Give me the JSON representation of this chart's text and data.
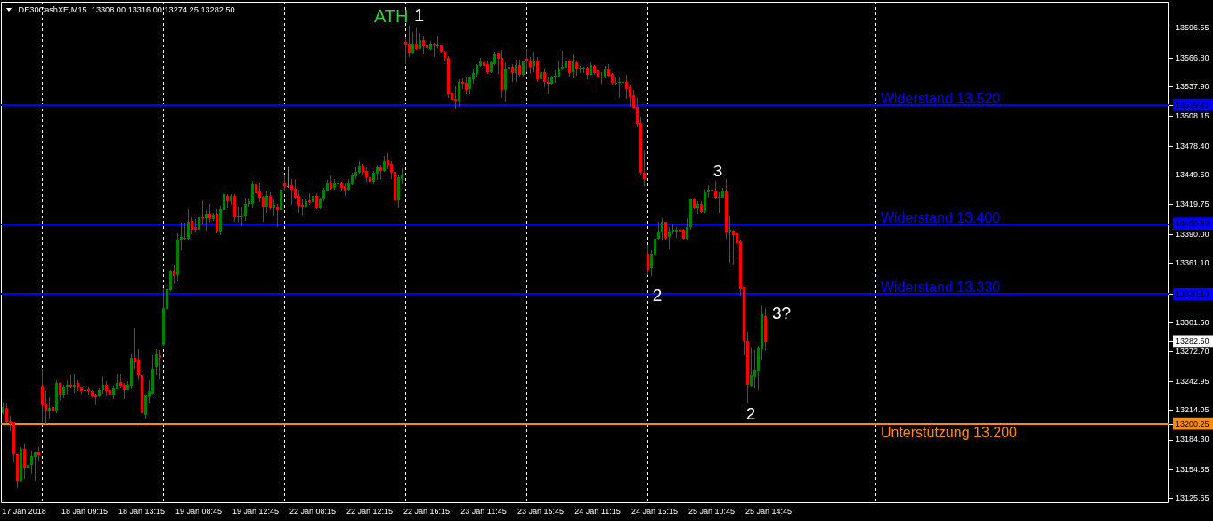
{
  "chart_data": {
    "type": "candlestick",
    "title": ".DE30CashXE,M15  13308.00 13316.00 13274.25 13282.50",
    "categories": [
      null,
      null,
      null,
      null,
      null,
      null,
      "17 Jan 2018",
      null,
      null,
      null,
      null,
      null,
      null,
      null,
      null,
      null,
      null,
      null,
      null,
      null,
      null,
      null,
      null,
      "18 Jan 09:15",
      null,
      null,
      null,
      null,
      null,
      null,
      null,
      null,
      null,
      null,
      null,
      null,
      null,
      null,
      null,
      "18 Jan 13:15",
      null,
      null,
      null,
      null,
      null,
      null,
      null,
      null,
      null,
      null,
      null,
      null,
      null,
      null,
      null,
      "19 Jan 08:45",
      null,
      null,
      null,
      null,
      null,
      null,
      null,
      null,
      null,
      null,
      null,
      null,
      null,
      null,
      null,
      "19 Jan 12:45",
      null,
      null,
      null,
      null,
      null,
      null,
      null,
      null,
      null,
      null,
      null,
      null,
      null,
      null,
      null,
      "22 Jan 08:15",
      null,
      null,
      null,
      null,
      null,
      null,
      null,
      null,
      null,
      null,
      null,
      null,
      null,
      null,
      null,
      "22 Jan 12:15",
      null,
      null,
      null,
      null,
      null,
      null,
      null,
      null,
      null,
      null,
      null,
      null,
      null,
      null,
      null,
      "22 Jan 16:15",
      null,
      null,
      null,
      null,
      null,
      null,
      null,
      null,
      null,
      null,
      null,
      null,
      null,
      null,
      null,
      "23 Jan 11:45",
      null,
      null,
      null,
      null,
      null,
      null,
      null,
      null,
      null,
      null,
      null,
      null,
      null,
      null,
      null,
      "23 Jan 15:45",
      null,
      null,
      null,
      null,
      null,
      null,
      null,
      null,
      null,
      null,
      null,
      null,
      null,
      null,
      null,
      "24 Jan 11:15",
      null,
      null,
      null,
      null,
      null,
      null,
      null,
      null,
      null,
      null,
      null,
      null,
      null,
      null,
      null,
      "24 Jan 15:15",
      null,
      null,
      null,
      null,
      null,
      null,
      null,
      null,
      null,
      null,
      null,
      null,
      null,
      null,
      null,
      "25 Jan 10:45",
      null,
      null,
      null,
      null,
      null,
      null,
      null,
      null,
      null,
      null,
      null,
      null,
      null,
      null,
      null,
      "25 Jan 14:45",
      null,
      null,
      null,
      null,
      null,
      null,
      null,
      null,
      null,
      null,
      null,
      null,
      null,
      null,
      null,
      null,
      null,
      null,
      null,
      null,
      null,
      null,
      null,
      null,
      null,
      null,
      null,
      null,
      null,
      null,
      null,
      null,
      null,
      null,
      null,
      null,
      null,
      null,
      null,
      null,
      null,
      null,
      null,
      null,
      null,
      null,
      null,
      null,
      null,
      null,
      null,
      null,
      null,
      null,
      null,
      null,
      null,
      null,
      null,
      null,
      null,
      null,
      null,
      null,
      null,
      null,
      null,
      null,
      null,
      null,
      null,
      null,
      null,
      null,
      null,
      null,
      null,
      null,
      null,
      null,
      null,
      null,
      null,
      null,
      null,
      null,
      null,
      null,
      null,
      null,
      null,
      null,
      null,
      null,
      null,
      null,
      null,
      null,
      null,
      null,
      null,
      null,
      null,
      null,
      null,
      null,
      null,
      null,
      null,
      null,
      null,
      null
    ],
    "ohlc": [
      [
        13211,
        13222,
        13210,
        13217
      ],
      [
        13216,
        13221,
        13201,
        13202
      ],
      [
        13203,
        13208,
        13193,
        13200
      ],
      [
        13202,
        13202,
        13162,
        13170
      ],
      [
        13170,
        13170,
        13136,
        13143
      ],
      [
        13143,
        13177,
        13142,
        13175
      ],
      [
        13175,
        13181,
        13145,
        13156
      ],
      [
        13156,
        13173,
        13151,
        13159
      ],
      [
        13159,
        13174,
        13150,
        13168
      ],
      [
        13167,
        13173,
        13143,
        13172
      ],
      [
        13172,
        13177,
        13163,
        13169
      ],
      [
        13239,
        13256,
        13202,
        13219
      ],
      [
        13220,
        13233,
        13200,
        13214
      ],
      [
        13214,
        13227,
        13206,
        13216
      ],
      [
        13217,
        13222,
        13202,
        13214
      ],
      [
        13214,
        13244,
        13211,
        13241
      ],
      [
        13241,
        13242,
        13224,
        13229
      ],
      [
        13229,
        13240,
        13226,
        13238
      ],
      [
        13237,
        13244,
        13230,
        13240
      ],
      [
        13240,
        13249,
        13236,
        13238
      ],
      [
        13237,
        13250,
        13232,
        13240
      ],
      [
        13241,
        13244,
        13233,
        13237
      ],
      [
        13237,
        13238,
        13230,
        13233
      ],
      [
        13233,
        13241,
        13225,
        13234
      ],
      [
        13235,
        13238,
        13230,
        13233
      ],
      [
        13233,
        13234,
        13227,
        13228
      ],
      [
        13229,
        13231,
        13219,
        13227
      ],
      [
        13228,
        13236,
        13227,
        13234
      ],
      [
        13234,
        13248,
        13231,
        13240
      ],
      [
        13240,
        13243,
        13228,
        13233
      ],
      [
        13234,
        13239,
        13221,
        13229
      ],
      [
        13229,
        13239,
        13225,
        13236
      ],
      [
        13235,
        13250,
        13235,
        13241
      ],
      [
        13242,
        13250,
        13236,
        13239
      ],
      [
        13240,
        13241,
        13225,
        13234
      ],
      [
        13234,
        13243,
        13234,
        13240
      ],
      [
        13239,
        13271,
        13235,
        13266
      ],
      [
        13266,
        13297,
        13256,
        13263
      ],
      [
        13265,
        13275,
        13244,
        13249
      ],
      [
        13249,
        13252,
        13202,
        13211
      ],
      [
        13209,
        13230,
        13205,
        13229
      ],
      [
        13227,
        13244,
        13221,
        13233
      ],
      [
        13231,
        13269,
        13230,
        13256
      ],
      [
        13257,
        13275,
        13249,
        13270
      ],
      [
        13269,
        13274,
        13245,
        13266
      ],
      [
        13280,
        13337,
        13279,
        13316
      ],
      [
        13315,
        13345,
        13310,
        13335
      ],
      [
        13334,
        13355,
        13333,
        13354
      ],
      [
        13354,
        13360,
        13340,
        13348
      ],
      [
        13349,
        13391,
        13343,
        13385
      ],
      [
        13384,
        13402,
        13374,
        13388
      ],
      [
        13387,
        13402,
        13385,
        13386
      ],
      [
        13386,
        13415,
        13385,
        13403
      ],
      [
        13404,
        13407,
        13390,
        13395
      ],
      [
        13397,
        13405,
        13392,
        13395
      ],
      [
        13395,
        13409,
        13393,
        13407
      ],
      [
        13407,
        13424,
        13400,
        13406
      ],
      [
        13406,
        13414,
        13394,
        13411
      ],
      [
        13411,
        13421,
        13403,
        13406
      ],
      [
        13405,
        13412,
        13404,
        13410
      ],
      [
        13411,
        13415,
        13391,
        13394
      ],
      [
        13393,
        13419,
        13389,
        13415
      ],
      [
        13414,
        13434,
        13411,
        13430
      ],
      [
        13429,
        13430,
        13416,
        13423
      ],
      [
        13423,
        13430,
        13420,
        13429
      ],
      [
        13429,
        13430,
        13403,
        13407
      ],
      [
        13408,
        13418,
        13403,
        13407
      ],
      [
        13407,
        13418,
        13398,
        13409
      ],
      [
        13408,
        13427,
        13404,
        13421
      ],
      [
        13421,
        13426,
        13418,
        13423
      ],
      [
        13421,
        13444,
        13417,
        13440
      ],
      [
        13440,
        13448,
        13426,
        13431
      ],
      [
        13433,
        13442,
        13422,
        13427
      ],
      [
        13428,
        13429,
        13403,
        13418
      ],
      [
        13418,
        13433,
        13412,
        13429
      ],
      [
        13429,
        13432,
        13414,
        13417
      ],
      [
        13417,
        13425,
        13409,
        13420
      ],
      [
        13418,
        13421,
        13397,
        13414
      ],
      [
        13414,
        13440,
        13411,
        13435
      ],
      [
        13441,
        13449,
        13433,
        13438
      ],
      [
        13438,
        13458,
        13437,
        13438
      ],
      [
        13439,
        13446,
        13420,
        13435
      ],
      [
        13436,
        13446,
        13426,
        13427
      ],
      [
        13429,
        13435,
        13412,
        13419
      ],
      [
        13420,
        13426,
        13410,
        13418
      ],
      [
        13418,
        13426,
        13417,
        13423
      ],
      [
        13424,
        13431,
        13420,
        13422
      ],
      [
        13422,
        13441,
        13421,
        13429
      ],
      [
        13429,
        13431,
        13415,
        13416
      ],
      [
        13416,
        13427,
        13415,
        13426
      ],
      [
        13425,
        13437,
        13423,
        13435
      ],
      [
        13434,
        13445,
        13433,
        13441
      ],
      [
        13441,
        13449,
        13435,
        13436
      ],
      [
        13437,
        13446,
        13435,
        13442
      ],
      [
        13440,
        13444,
        13436,
        13442
      ],
      [
        13441,
        13443,
        13433,
        13437
      ],
      [
        13438,
        13441,
        13429,
        13434
      ],
      [
        13435,
        13446,
        13433,
        13441
      ],
      [
        13440,
        13452,
        13439,
        13449
      ],
      [
        13448,
        13458,
        13446,
        13453
      ],
      [
        13452,
        13463,
        13451,
        13459
      ],
      [
        13459,
        13461,
        13450,
        13453
      ],
      [
        13454,
        13457,
        13443,
        13447
      ],
      [
        13447,
        13452,
        13440,
        13443
      ],
      [
        13443,
        13454,
        13440,
        13452
      ],
      [
        13451,
        13460,
        13445,
        13458
      ],
      [
        13458,
        13460,
        13446,
        13454
      ],
      [
        13454,
        13469,
        13453,
        13463
      ],
      [
        13464,
        13471,
        13455,
        13460
      ],
      [
        13461,
        13463,
        13446,
        13452
      ],
      [
        13453,
        13454,
        13420,
        13424
      ],
      [
        13424,
        13450,
        13417,
        13447
      ],
      [
        13446,
        13456,
        13440,
        13450
      ],
      [
        13583,
        13587,
        13561,
        13580
      ],
      [
        13581,
        13599,
        13568,
        13571
      ],
      [
        13571,
        13593,
        13570,
        13581
      ],
      [
        13581,
        13597,
        13575,
        13576
      ],
      [
        13576,
        13592,
        13576,
        13585
      ],
      [
        13585,
        13589,
        13570,
        13578
      ],
      [
        13579,
        13581,
        13570,
        13577
      ],
      [
        13576,
        13584,
        13575,
        13581
      ],
      [
        13581,
        13582,
        13568,
        13579
      ],
      [
        13578,
        13589,
        13577,
        13579
      ],
      [
        13579,
        13579,
        13572,
        13573
      ],
      [
        13573,
        13574,
        13563,
        13567
      ],
      [
        13567,
        13569,
        13527,
        13530
      ],
      [
        13532,
        13541,
        13524,
        13525
      ],
      [
        13526,
        13538,
        13516,
        13524
      ],
      [
        13524,
        13545,
        13518,
        13543
      ],
      [
        13543,
        13546,
        13536,
        13541
      ],
      [
        13542,
        13547,
        13531,
        13535
      ],
      [
        13536,
        13548,
        13531,
        13547
      ],
      [
        13545,
        13556,
        13541,
        13552
      ],
      [
        13551,
        13561,
        13547,
        13560
      ],
      [
        13559,
        13567,
        13558,
        13563
      ],
      [
        13562,
        13568,
        13558,
        13559
      ],
      [
        13561,
        13564,
        13551,
        13553
      ],
      [
        13553,
        13564,
        13552,
        13562
      ],
      [
        13561,
        13573,
        13560,
        13570
      ],
      [
        13571,
        13572,
        13551,
        13566
      ],
      [
        13567,
        13575,
        13527,
        13535
      ],
      [
        13535,
        13562,
        13523,
        13556
      ],
      [
        13556,
        13565,
        13545,
        13558
      ],
      [
        13558,
        13561,
        13543,
        13552
      ],
      [
        13552,
        13565,
        13543,
        13560
      ],
      [
        13560,
        13565,
        13548,
        13550
      ],
      [
        13550,
        13564,
        13548,
        13563
      ],
      [
        13566,
        13576,
        13553,
        13564
      ],
      [
        13564,
        13568,
        13551,
        13558
      ],
      [
        13559,
        13573,
        13553,
        13564
      ],
      [
        13564,
        13568,
        13543,
        13545
      ],
      [
        13545,
        13556,
        13535,
        13553
      ],
      [
        13553,
        13556,
        13537,
        13543
      ],
      [
        13543,
        13547,
        13531,
        13541
      ],
      [
        13541,
        13549,
        13540,
        13547
      ],
      [
        13547,
        13554,
        13542,
        13549
      ],
      [
        13548,
        13564,
        13547,
        13556
      ],
      [
        13555,
        13574,
        13554,
        13558
      ],
      [
        13557,
        13564,
        13555,
        13563
      ],
      [
        13564,
        13564,
        13548,
        13552
      ],
      [
        13553,
        13570,
        13546,
        13563
      ],
      [
        13562,
        13564,
        13549,
        13555
      ],
      [
        13555,
        13559,
        13552,
        13557
      ],
      [
        13555,
        13558,
        13552,
        13557
      ],
      [
        13557,
        13558,
        13545,
        13550
      ],
      [
        13550,
        13562,
        13549,
        13560
      ],
      [
        13559,
        13560,
        13550,
        13552
      ],
      [
        13554,
        13554,
        13536,
        13547
      ],
      [
        13547,
        13553,
        13541,
        13548
      ],
      [
        13547,
        13559,
        13546,
        13555
      ],
      [
        13556,
        13561,
        13547,
        13549
      ],
      [
        13551,
        13552,
        13540,
        13542
      ],
      [
        13541,
        13547,
        13540,
        13542
      ],
      [
        13542,
        13547,
        13527,
        13543
      ],
      [
        13542,
        13545,
        13528,
        13543
      ],
      [
        13543,
        13550,
        13526,
        13536
      ],
      [
        13537,
        13540,
        13518,
        13528
      ],
      [
        13529,
        13535,
        13516,
        13517
      ],
      [
        13518,
        13527,
        13497,
        13501
      ],
      [
        13502,
        13508,
        13449,
        13452
      ],
      [
        13452,
        13475,
        13438,
        13446
      ],
      [
        13371,
        13380,
        13349,
        13355
      ],
      [
        13356,
        13374,
        13348,
        13371
      ],
      [
        13370,
        13393,
        13368,
        13386
      ],
      [
        13386,
        13403,
        13384,
        13393
      ],
      [
        13392,
        13406,
        13384,
        13403
      ],
      [
        13403,
        13403,
        13384,
        13387
      ],
      [
        13388,
        13397,
        13375,
        13393
      ],
      [
        13393,
        13400,
        13390,
        13395
      ],
      [
        13393,
        13397,
        13387,
        13395
      ],
      [
        13395,
        13397,
        13385,
        13393
      ],
      [
        13395,
        13396,
        13384,
        13386
      ],
      [
        13386,
        13406,
        13384,
        13397
      ],
      [
        13397,
        13426,
        13395,
        13425
      ],
      [
        13425,
        13427,
        13415,
        13416
      ],
      [
        13416,
        13423,
        13411,
        13421
      ],
      [
        13421,
        13423,
        13412,
        13413
      ],
      [
        13413,
        13435,
        13412,
        13432
      ],
      [
        13432,
        13439,
        13428,
        13435
      ],
      [
        13435,
        13440,
        13429,
        13434
      ],
      [
        13434,
        13444,
        13426,
        13427
      ],
      [
        13427,
        13432,
        13412,
        13428
      ],
      [
        13427,
        13437,
        13427,
        13434
      ],
      [
        13433,
        13446,
        13386,
        13392
      ],
      [
        13393,
        13409,
        13362,
        13395
      ],
      [
        13394,
        13395,
        13360,
        13389
      ],
      [
        13391,
        13401,
        13365,
        13381
      ],
      [
        13383,
        13385,
        13329,
        13336
      ],
      [
        13338,
        13338,
        13269,
        13283
      ],
      [
        13283,
        13292,
        13221,
        13240
      ],
      [
        13239,
        13276,
        13237,
        13249
      ],
      [
        13248,
        13274,
        13236,
        13254
      ],
      [
        13253,
        13278,
        13234,
        13276
      ],
      [
        13275,
        13319,
        13265,
        13310
      ],
      [
        13308,
        13316,
        13274.25,
        13282.5
      ],
      null,
      null,
      null,
      null,
      null,
      null,
      null,
      null,
      null,
      null,
      null,
      null,
      null,
      null,
      null,
      null,
      null,
      null,
      null,
      null,
      null,
      null,
      null,
      null,
      null,
      null,
      null,
      null,
      null,
      null,
      null,
      null,
      null,
      null,
      null,
      null,
      null,
      null,
      null,
      null,
      null,
      null,
      null,
      null,
      null,
      null,
      null,
      null,
      null,
      null,
      null,
      null,
      null,
      null,
      null,
      null,
      null,
      null,
      null,
      null,
      null,
      null,
      null,
      null,
      null,
      null,
      null,
      null,
      null,
      null,
      null,
      null,
      null,
      null,
      null,
      null,
      null,
      null,
      null,
      null,
      null,
      null,
      null,
      null,
      null,
      null,
      null,
      null,
      null,
      null,
      null,
      null,
      null,
      null,
      null,
      null,
      null,
      null,
      null,
      null,
      null,
      null,
      null,
      null,
      null,
      null,
      null,
      null,
      null,
      null,
      null,
      null,
      null
    ],
    "colors": [
      "#008000",
      "#ff0000",
      "#ff0000",
      "#ff0000",
      "#ff0000",
      "#008000",
      "#ff0000",
      "#008000",
      "#008000",
      "#008000",
      "#ff0000",
      "#ff0000",
      "#ff0000",
      "#008000",
      "#ff0000",
      "#008000",
      "#ff0000",
      "#008000",
      "#008000",
      "#ff0000",
      "#008000",
      "#ff0000",
      "#ff0000",
      "#008000",
      "#ff0000",
      "#ff0000",
      "#ff0000",
      "#008000",
      "#008000",
      "#ff0000",
      "#ff0000",
      "#008000",
      "#008000",
      "#ff0000",
      "#ff0000",
      "#008000",
      "#008000",
      "#ff0000",
      "#ff0000",
      "#ff0000",
      "#008000",
      "#008000",
      "#008000",
      "#008000",
      "#ff0000",
      "#008000",
      "#008000",
      "#008000",
      "#ff0000",
      "#008000",
      "#008000",
      "#ff0000",
      "#008000",
      "#ff0000",
      "#ff0000",
      "#008000",
      "#ff0000",
      "#008000",
      "#ff0000",
      "#008000",
      "#ff0000",
      "#008000",
      "#008000",
      "#ff0000",
      "#008000",
      "#ff0000",
      "#ff0000",
      "#008000",
      "#008000",
      "#008000",
      "#008000",
      "#ff0000",
      "#ff0000",
      "#ff0000",
      "#008000",
      "#ff0000",
      "#008000",
      "#ff0000",
      "#008000",
      "#ff0000",
      "#808080",
      "#ff0000",
      "#ff0000",
      "#ff0000",
      "#ff0000",
      "#008000",
      "#ff0000",
      "#008000",
      "#ff0000",
      "#008000",
      "#008000",
      "#008000",
      "#ff0000",
      "#008000",
      "#008000",
      "#ff0000",
      "#ff0000",
      "#008000",
      "#008000",
      "#008000",
      "#008000",
      "#ff0000",
      "#ff0000",
      "#ff0000",
      "#008000",
      "#008000",
      "#ff0000",
      "#008000",
      "#ff0000",
      "#ff0000",
      "#ff0000",
      "#008000",
      "#008000",
      "#ff0000",
      "#ff0000",
      "#008000",
      "#ff0000",
      "#008000",
      "#ff0000",
      "#ff0000",
      "#008000",
      "#ff0000",
      "#008000",
      "#ff0000",
      "#ff0000",
      "#ff0000",
      "#ff0000",
      "#ff0000",
      "#008000",
      "#ff0000",
      "#ff0000",
      "#008000",
      "#008000",
      "#008000",
      "#008000",
      "#ff0000",
      "#ff0000",
      "#008000",
      "#008000",
      "#ff0000",
      "#ff0000",
      "#008000",
      "#008000",
      "#ff0000",
      "#008000",
      "#ff0000",
      "#008000",
      "#ff0000",
      "#ff0000",
      "#008000",
      "#ff0000",
      "#008000",
      "#ff0000",
      "#ff0000",
      "#008000",
      "#008000",
      "#008000",
      "#008000",
      "#008000",
      "#ff0000",
      "#008000",
      "#ff0000",
      "#008000",
      "#008000",
      "#ff0000",
      "#008000",
      "#ff0000",
      "#ff0000",
      "#008000",
      "#008000",
      "#ff0000",
      "#ff0000",
      "#008000",
      "#008000",
      "#008000",
      "#ff0000",
      "#ff0000",
      "#ff0000",
      "#ff0000",
      "#ff0000",
      "#ff0000",
      "#ff0000",
      "#008000",
      "#008000",
      "#008000",
      "#008000",
      "#ff0000",
      "#008000",
      "#008000",
      "#008000",
      "#ff0000",
      "#ff0000",
      "#008000",
      "#008000",
      "#ff0000",
      "#008000",
      "#ff0000",
      "#008000",
      "#008000",
      "#ff0000",
      "#ff0000",
      "#008000",
      "#008000",
      "#ff0000",
      "#008000",
      "#ff0000",
      "#ff0000",
      "#ff0000",
      "#ff0000",
      "#ff0000",
      "#008000",
      "#008000",
      "#008000",
      "#008000",
      "#ff0000",
      null,
      null,
      null,
      null,
      null,
      null,
      null,
      null,
      null,
      null,
      null,
      null,
      null,
      null,
      null,
      null,
      null,
      null,
      null,
      null,
      null,
      null,
      null,
      null,
      null,
      null,
      null,
      null,
      null,
      null,
      null,
      null,
      null,
      null,
      null,
      null,
      null,
      null,
      null,
      null,
      null,
      null,
      null,
      null,
      null,
      null,
      null,
      null,
      null,
      null,
      null,
      null,
      null,
      null,
      null,
      null,
      null,
      null,
      null,
      null,
      null,
      null,
      null,
      null,
      null,
      null,
      null,
      null,
      null,
      null,
      null,
      null,
      null,
      null,
      null,
      null,
      null,
      null,
      null,
      null,
      null,
      null,
      null,
      null,
      null,
      null,
      null,
      null,
      null,
      null,
      null,
      null,
      null,
      null,
      null,
      null,
      null,
      null,
      null,
      null,
      null,
      null,
      null,
      null,
      null,
      null,
      null,
      null,
      null,
      null,
      null,
      null,
      null
    ],
    "ylim": [
      13121,
      13623
    ],
    "yticks": [
      13125.65,
      13154.55,
      {
        "value": 13184.3,
        "label": "13184.30"
      },
      13200.25,
      13214.05,
      13242.95,
      {
        "value": 13272.7,
        "label": "13272.70"
      },
      {
        "value": 13282.5,
        "label": "13282.50"
      },
      {
        "value": 13301.6,
        "label": "13301.60"
      },
      {
        "value": 13330.1,
        "label": "13330.10"
      },
      {
        "value": 13361.1,
        "label": "13361.10"
      },
      {
        "value": 13390,
        "label": "13390.00"
      },
      13400.39,
      13419.75,
      {
        "value": 13449.5,
        "label": "13449.50"
      },
      {
        "value": 13478.4,
        "label": "13478.40"
      },
      13508.15,
      13519.41,
      {
        "value": 13537.9,
        "label": "13537.90"
      },
      {
        "value": 13566.8,
        "label": "13566.80"
      },
      13596.55
    ],
    "ref_lines": [
      {
        "axis": "y",
        "value": 13519.41,
        "label": "Widerstand 13.520",
        "color": "#0000ff"
      },
      {
        "axis": "y",
        "value": 13400.39,
        "label": "Widerstand 13.400",
        "color": "#0000ff"
      },
      {
        "axis": "y",
        "value": 13330.1,
        "label": "Widerstand 13.330",
        "color": "#0000ff"
      },
      {
        "axis": "y",
        "value": 13200.25,
        "label": "Unterstützung 13.200",
        "color": "#ff8c00"
      }
    ],
    "annotations": [
      "ATH",
      {
        "text": "1",
        "y": 13599
      },
      "2",
      {
        "text": "3",
        "y": 13446
      },
      {
        "text": "2",
        "y": 13221
      },
      "3?"
    ]
  }
}
